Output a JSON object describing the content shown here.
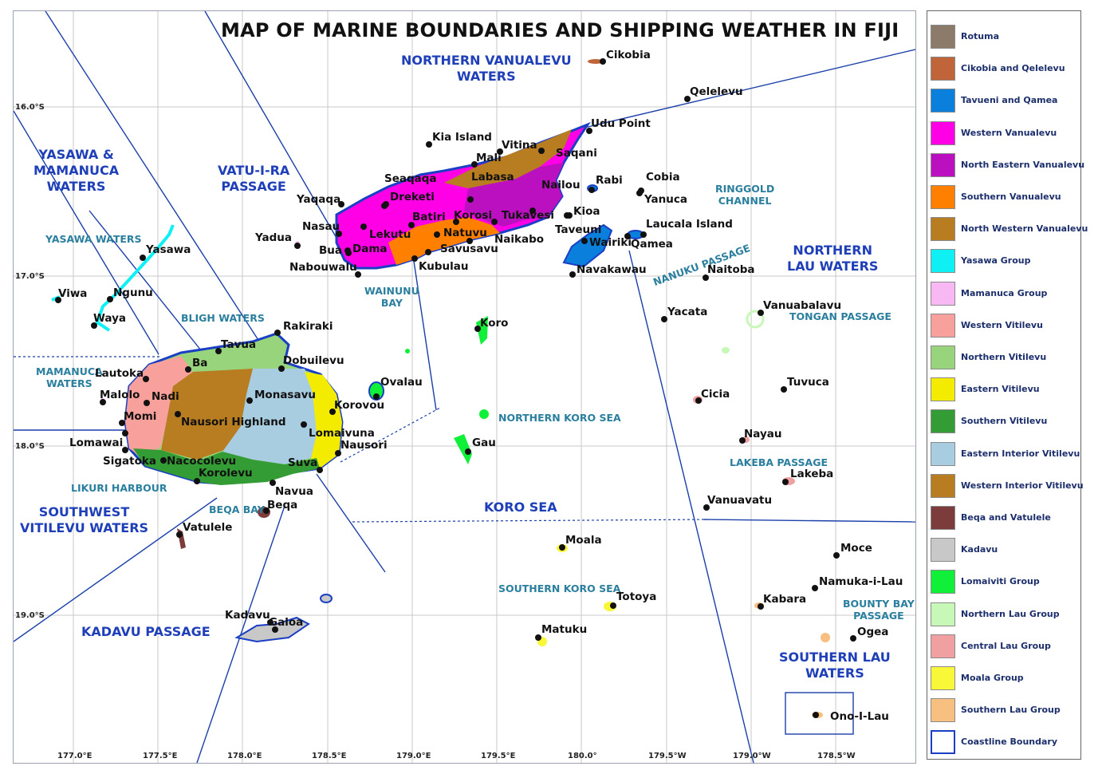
{
  "title": "MAP OF MARINE BOUNDARIES AND SHIPPING WEATHER IN FIJI",
  "colors": {
    "coastline": "#1a3fc4",
    "boundary": "#1a3fa8",
    "grid": "#c8c8c8",
    "zone_text": "#1e3fb8",
    "subzone_text": "#2b7f9e"
  },
  "lat_ticks": [
    "16.0°S",
    "17.0°S",
    "18.0°S",
    "19.0°S"
  ],
  "lon_ticks": [
    "177.0°E",
    "177.5°E",
    "178.0°E",
    "178.5°E",
    "179.0°E",
    "179.5°E",
    "180.0°",
    "179.5°W",
    "179.0°W",
    "178.5°W"
  ],
  "zones": [
    {
      "name": "northern-vanualevu-waters",
      "text": "NORTHERN VANUALEVU\nWATERS"
    },
    {
      "name": "yasawa-mamanuca-waters",
      "text": "YASAWA &\nMAMANUCA\nWATERS"
    },
    {
      "name": "vatu-i-ra-passage",
      "text": "VATU-I-RA\nPASSAGE"
    },
    {
      "name": "northern-lau-waters",
      "text": "NORTHERN\nLAU WATERS"
    },
    {
      "name": "southwest-vitilevu-waters",
      "text": "SOUTHWEST\nVITILEVU WATERS"
    },
    {
      "name": "koro-sea",
      "text": "KORO SEA"
    },
    {
      "name": "kadavu-passage",
      "text": "KADAVU PASSAGE"
    },
    {
      "name": "southern-lau-waters",
      "text": "SOUTHERN LAU\nWATERS"
    }
  ],
  "subzones": [
    {
      "name": "yasawa-waters",
      "text": "YASAWA WATERS"
    },
    {
      "name": "bligh-waters",
      "text": "BLIGH WATERS"
    },
    {
      "name": "mamanuca-waters",
      "text": "MAMANUCA\nWATERS"
    },
    {
      "name": "wainunu-bay",
      "text": "WAINUNU\nBAY"
    },
    {
      "name": "ringgold-channel",
      "text": "RINGGOLD\nCHANNEL"
    },
    {
      "name": "nanuku-passage",
      "text": "NANUKU PASSAGE"
    },
    {
      "name": "tongan-passage",
      "text": "TONGAN PASSAGE"
    },
    {
      "name": "northern-koro-sea",
      "text": "NORTHERN KORO SEA"
    },
    {
      "name": "lakeba-passage",
      "text": "LAKEBA PASSAGE"
    },
    {
      "name": "likuri-harbour",
      "text": "LIKURI HARBOUR"
    },
    {
      "name": "beqa-bay",
      "text": "BEQA BAY"
    },
    {
      "name": "southern-koro-sea",
      "text": "SOUTHERN KORO SEA"
    },
    {
      "name": "bounty-bay-passage",
      "text": "BOUNTY BAY\nPASSAGE"
    }
  ],
  "places": [
    "Cikobia",
    "Qelelevu",
    "Udu Point",
    "Kia Island",
    "Mali",
    "Vitina",
    "Saqani",
    "Seaqaqa",
    "Labasa",
    "Dreketi",
    "Nailou",
    "Rabi",
    "Cobia",
    "Yanuca",
    "Yaqaqa",
    "Batiri",
    "Korosi",
    "Tukavesi",
    "Kioa",
    "Nasau",
    "Natuvu",
    "Taveuni",
    "Laucala Island",
    "Lekutu",
    "Naikabo",
    "Wairiki",
    "Qamea",
    "Yadua",
    "Bua",
    "Dama",
    "Savusavu",
    "Nabouwalu",
    "Kubulau",
    "Navakawau",
    "Naitoba",
    "Yasawa",
    "Yacata",
    "Vanuabalavu",
    "Viwa",
    "Ngunu",
    "Waya",
    "Koro",
    "Rakiraki",
    "Tavua",
    "Ba",
    "Dobuilevu",
    "Lautoka",
    "Ovalau",
    "Tuvuca",
    "Malolo",
    "Nadi",
    "Monasavu",
    "Korovou",
    "Cicia",
    "Momi",
    "Nausori Highland",
    "Lomaivuna",
    "Gau",
    "Nayau",
    "Lomawai",
    "Nausori",
    "Sigatoka",
    "Nacocolevu",
    "Suva",
    "Korolevu",
    "Navua",
    "Lakeba",
    "Beqa",
    "Vanuavatu",
    "Vatulele",
    "Moala",
    "Moce",
    "Namuka-i-Lau",
    "Totoya",
    "Kabara",
    "Kadavu",
    "Galoa",
    "Matuku",
    "Ogea",
    "Ono-I-Lau"
  ],
  "legend": [
    {
      "label": "Rotuma",
      "color": "#8c7b6b"
    },
    {
      "label": "Cikobia and Qelelevu",
      "color": "#c0653a"
    },
    {
      "label": "Tavueni and Qamea",
      "color": "#0a7fdc"
    },
    {
      "label": "Western Vanualevu",
      "color": "#ff00e6"
    },
    {
      "label": "North Eastern Vanualevu",
      "color": "#bb10c0"
    },
    {
      "label": "Southern Vanualevu",
      "color": "#ff8000"
    },
    {
      "label": "North Western Vanualevu",
      "color": "#b77d20"
    },
    {
      "label": "Yasawa Group",
      "color": "#0ef0f4"
    },
    {
      "label": "Mamanuca Group",
      "color": "#f8b8f4"
    },
    {
      "label": "Western Vitilevu",
      "color": "#f8a09c"
    },
    {
      "label": "Northern Vitilevu",
      "color": "#98d47c"
    },
    {
      "label": "Eastern Vitilevu",
      "color": "#f4ec00"
    },
    {
      "label": "Southern Vitilevu",
      "color": "#349c34"
    },
    {
      "label": "Eastern Interior Vitilevu",
      "color": "#a8cce0"
    },
    {
      "label": "Western Interior Vitilevu",
      "color": "#b77d20"
    },
    {
      "label": "Beqa and Vatulele",
      "color": "#7d3c3c"
    },
    {
      "label": "Kadavu",
      "color": "#c8c8c8"
    },
    {
      "label": "Lomaiviti Group",
      "color": "#10f038"
    },
    {
      "label": "Northern Lau Group",
      "color": "#c8f8b8"
    },
    {
      "label": "Central Lau Group",
      "color": "#f0a0a0"
    },
    {
      "label": "Moala Group",
      "color": "#f8f838"
    },
    {
      "label": "Southern Lau Group",
      "color": "#f8c080"
    },
    {
      "label": "Coastline Boundary",
      "color": "#ffffff"
    }
  ]
}
